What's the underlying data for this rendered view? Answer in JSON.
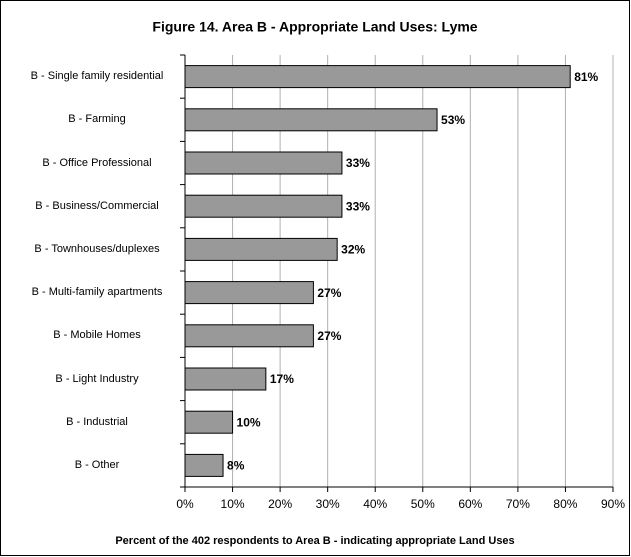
{
  "chart_data": {
    "type": "bar",
    "orientation": "horizontal",
    "title": "Figure 14.  Area B - Appropriate Land Uses: Lyme",
    "xlabel": "Percent of the 402 respondents to Area B - indicating appropriate Land Uses",
    "categories": [
      "B - Single family residential",
      "B - Farming",
      "B - Office Professional",
      "B - Business/Commercial",
      "B - Townhouses/duplexes",
      "B - Multi-family apartments",
      "B - Mobile Homes",
      "B - Light Industry",
      "B - Industrial",
      "B - Other"
    ],
    "values": [
      81,
      53,
      33,
      33,
      32,
      27,
      27,
      17,
      10,
      8
    ],
    "value_labels": [
      "81%",
      "53%",
      "33%",
      "33%",
      "32%",
      "27%",
      "27%",
      "17%",
      "10%",
      "8%"
    ],
    "color": "#999999",
    "xlim": [
      0,
      90
    ],
    "xticks": [
      {
        "value": 0,
        "label": "0%"
      },
      {
        "value": 10,
        "label": "10%"
      },
      {
        "value": 20,
        "label": "20%"
      },
      {
        "value": 30,
        "label": "30%"
      },
      {
        "value": 40,
        "label": "40%"
      },
      {
        "value": 50,
        "label": "50%"
      },
      {
        "value": 60,
        "label": "60%"
      },
      {
        "value": 70,
        "label": "70%"
      },
      {
        "value": 80,
        "label": "80%"
      },
      {
        "value": 90,
        "label": "90%"
      }
    ],
    "grid": true
  }
}
